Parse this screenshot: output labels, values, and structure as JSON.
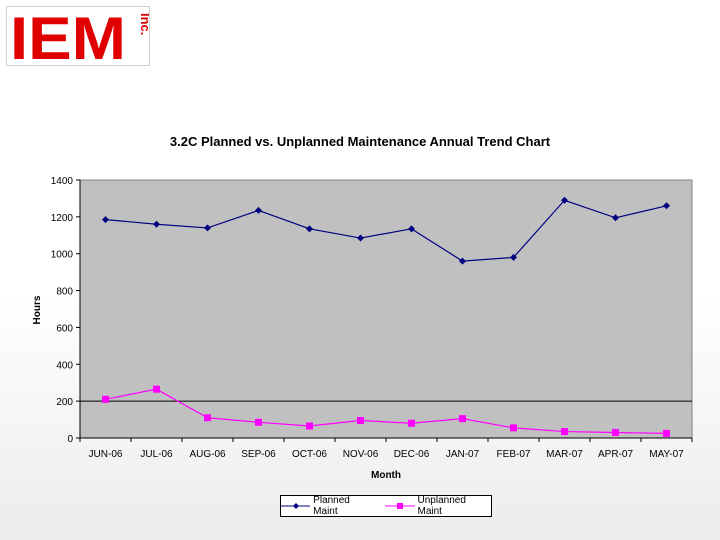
{
  "logo": {
    "text": "IEM",
    "suffix": "Inc."
  },
  "colors": {
    "planned": "#000080",
    "unplanned": "#ff00ff",
    "plot_bg": "#c0c0c0"
  },
  "chart_data": {
    "type": "line",
    "title": "3.2C Planned vs. Unplanned Maintenance Annual Trend Chart",
    "xlabel": "Month",
    "ylabel": "Hours",
    "ylim": [
      0,
      1400
    ],
    "yticks": [
      "0",
      "200",
      "400",
      "600",
      "800",
      "1000",
      "1200",
      "1400"
    ],
    "categories": [
      "JUN-06",
      "JUL-06",
      "AUG-06",
      "SEP-06",
      "OCT-06",
      "NOV-06",
      "DEC-06",
      "JAN-07",
      "FEB-07",
      "MAR-07",
      "APR-07",
      "MAY-07"
    ],
    "series": [
      {
        "name": "Planned Maint",
        "marker": "diamond",
        "values": [
          1185,
          1160,
          1140,
          1235,
          1135,
          1085,
          1135,
          960,
          980,
          1290,
          1195,
          1260
        ]
      },
      {
        "name": "Unplanned Maint",
        "marker": "square",
        "values": [
          210,
          265,
          110,
          85,
          65,
          95,
          80,
          105,
          55,
          35,
          30,
          25
        ]
      }
    ],
    "reference_line": 200,
    "legend_position": "bottom"
  }
}
